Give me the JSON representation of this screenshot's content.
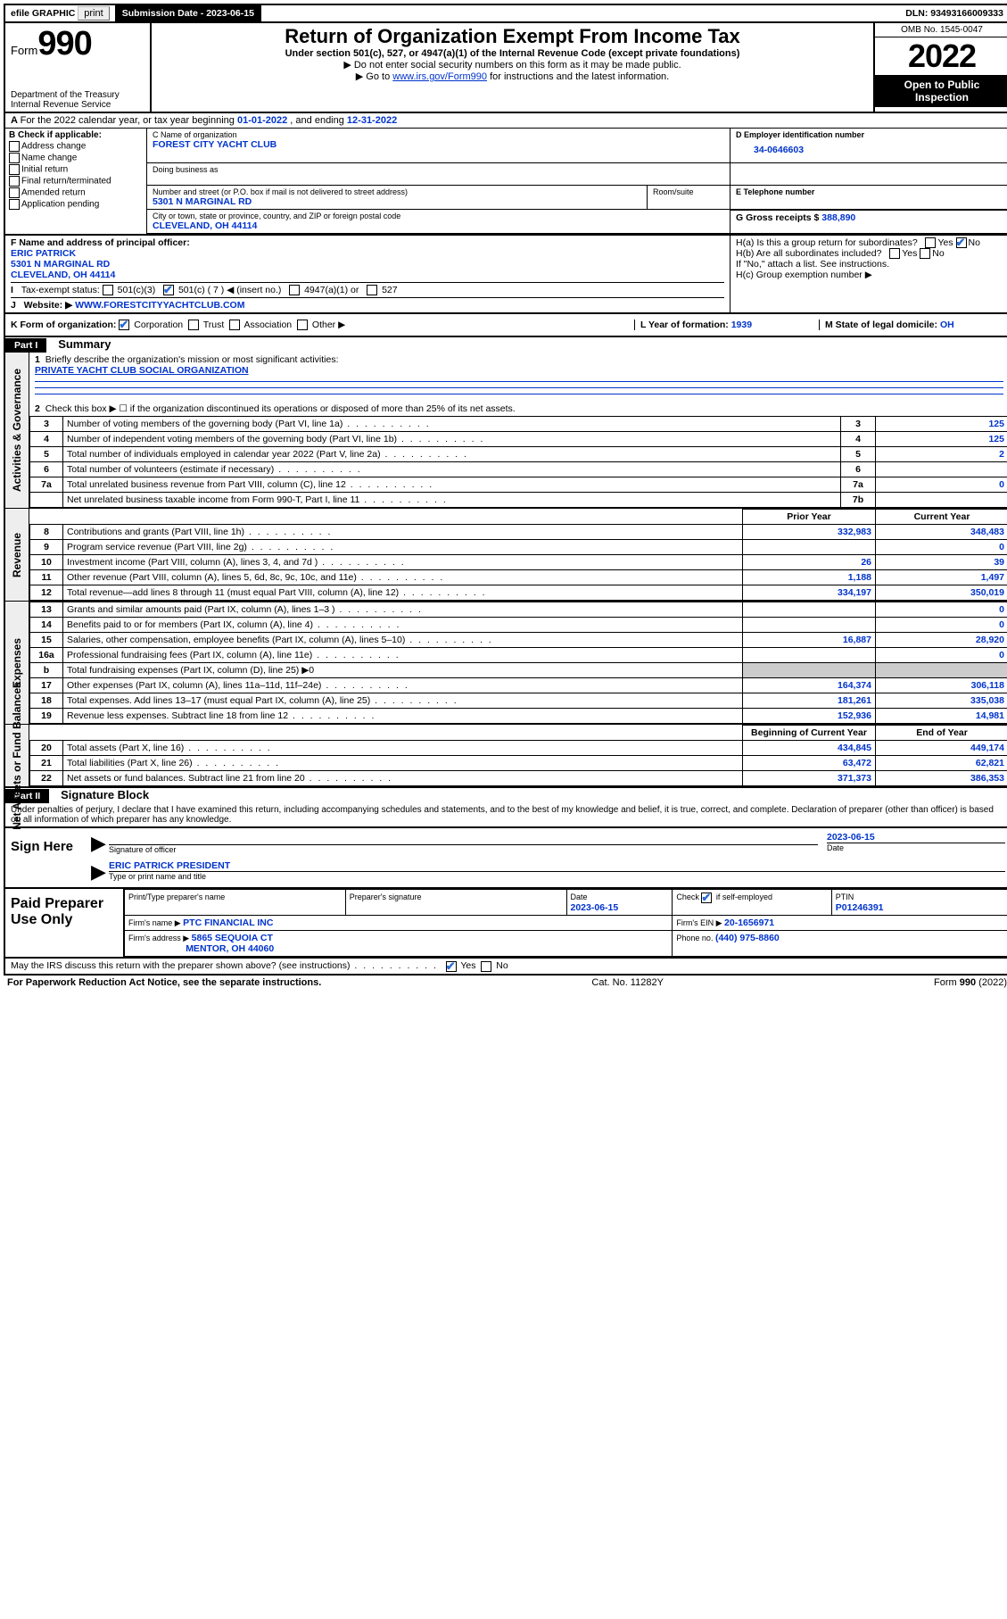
{
  "top": {
    "efile": "efile GRAPHIC",
    "print": "print",
    "sub_label": "Submission Date - ",
    "sub_date": "2023-06-15",
    "dln_label": "DLN: ",
    "dln": "93493166009333"
  },
  "hdr": {
    "form": "Form",
    "form_no": "990",
    "dept1": "Department of the Treasury",
    "dept2": "Internal Revenue Service",
    "title": "Return of Organization Exempt From Income Tax",
    "sub1": "Under section 501(c), 527, or 4947(a)(1) of the Internal Revenue Code (except private foundations)",
    "note1": "▶ Do not enter social security numbers on this form as it may be made public.",
    "note2_a": "▶ Go to ",
    "note2_link": "www.irs.gov/Form990",
    "note2_b": " for instructions and the latest information.",
    "omb": "OMB No. 1545-0047",
    "year": "2022",
    "open": "Open to Public Inspection"
  },
  "A": {
    "text_a": "For the 2022 calendar year, or tax year beginning ",
    "begin": "01-01-2022",
    "text_b": " , and ending ",
    "end": "12-31-2022"
  },
  "B": {
    "label": "B Check if applicable:",
    "opts": [
      "Address change",
      "Name change",
      "Initial return",
      "Final return/terminated",
      "Amended return",
      "Application pending"
    ]
  },
  "C": {
    "name_label": "C Name of organization",
    "name": "FOREST CITY YACHT CLUB",
    "dba_label": "Doing business as",
    "addr_label": "Number and street (or P.O. box if mail is not delivered to street address)",
    "room_label": "Room/suite",
    "addr": "5301 N MARGINAL RD",
    "city_label": "City or town, state or province, country, and ZIP or foreign postal code",
    "city": "CLEVELAND, OH  44114"
  },
  "D": {
    "label": "D Employer identification number",
    "val": "34-0646603"
  },
  "E": {
    "label": "E Telephone number",
    "val": ""
  },
  "G": {
    "label": "G Gross receipts $ ",
    "val": "388,890"
  },
  "F": {
    "label": "F Name and address of principal officer:",
    "name": "ERIC PATRICK",
    "addr1": "5301 N MARGINAL RD",
    "addr2": "CLEVELAND, OH  44114"
  },
  "H": {
    "a": "H(a)  Is this a group return for subordinates?",
    "b": "H(b)  Are all subordinates included?",
    "b_note": "If \"No,\" attach a list. See instructions.",
    "c": "H(c)  Group exemption number ▶",
    "yes": "Yes",
    "no": "No"
  },
  "I": {
    "label": "Tax-exempt status:",
    "o1": "501(c)(3)",
    "o2": "501(c) ( 7 ) ◀ (insert no.)",
    "o3": "4947(a)(1) or",
    "o4": "527"
  },
  "J": {
    "label": "Website: ▶ ",
    "val": "WWW.FORESTCITYYACHTCLUB.COM"
  },
  "K": {
    "label": "K Form of organization:",
    "o1": "Corporation",
    "o2": "Trust",
    "o3": "Association",
    "o4": "Other ▶"
  },
  "L": {
    "label": "L Year of formation: ",
    "val": "1939"
  },
  "M": {
    "label": "M State of legal domicile: ",
    "val": "OH"
  },
  "partI": {
    "hdr": "Part I",
    "title": "Summary"
  },
  "sideLabels": {
    "ag": "Activities & Governance",
    "rev": "Revenue",
    "exp": "Expenses",
    "na": "Net Assets or Fund Balances"
  },
  "p1": {
    "l1_label": "Briefly describe the organization's mission or most significant activities:",
    "l1_val": "PRIVATE YACHT CLUB SOCIAL ORGANIZATION",
    "l2": "Check this box ▶ ☐  if the organization discontinued its operations or disposed of more than 25% of its net assets.",
    "lines": [
      {
        "n": "3",
        "d": "Number of voting members of the governing body (Part VI, line 1a)",
        "b": "3",
        "v": "125"
      },
      {
        "n": "4",
        "d": "Number of independent voting members of the governing body (Part VI, line 1b)",
        "b": "4",
        "v": "125"
      },
      {
        "n": "5",
        "d": "Total number of individuals employed in calendar year 2022 (Part V, line 2a)",
        "b": "5",
        "v": "2"
      },
      {
        "n": "6",
        "d": "Total number of volunteers (estimate if necessary)",
        "b": "6",
        "v": ""
      },
      {
        "n": "7a",
        "d": "Total unrelated business revenue from Part VIII, column (C), line 12",
        "b": "7a",
        "v": "0"
      },
      {
        "n": "",
        "d": "Net unrelated business taxable income from Form 990-T, Part I, line 11",
        "b": "7b",
        "v": ""
      }
    ],
    "col_prior": "Prior Year",
    "col_curr": "Current Year",
    "rev": [
      {
        "n": "8",
        "d": "Contributions and grants (Part VIII, line 1h)",
        "p": "332,983",
        "c": "348,483"
      },
      {
        "n": "9",
        "d": "Program service revenue (Part VIII, line 2g)",
        "p": "",
        "c": "0"
      },
      {
        "n": "10",
        "d": "Investment income (Part VIII, column (A), lines 3, 4, and 7d )",
        "p": "26",
        "c": "39"
      },
      {
        "n": "11",
        "d": "Other revenue (Part VIII, column (A), lines 5, 6d, 8c, 9c, 10c, and 11e)",
        "p": "1,188",
        "c": "1,497"
      },
      {
        "n": "12",
        "d": "Total revenue—add lines 8 through 11 (must equal Part VIII, column (A), line 12)",
        "p": "334,197",
        "c": "350,019"
      }
    ],
    "exp": [
      {
        "n": "13",
        "d": "Grants and similar amounts paid (Part IX, column (A), lines 1–3 )",
        "p": "",
        "c": "0"
      },
      {
        "n": "14",
        "d": "Benefits paid to or for members (Part IX, column (A), line 4)",
        "p": "",
        "c": "0"
      },
      {
        "n": "15",
        "d": "Salaries, other compensation, employee benefits (Part IX, column (A), lines 5–10)",
        "p": "16,887",
        "c": "28,920"
      },
      {
        "n": "16a",
        "d": "Professional fundraising fees (Part IX, column (A), line 11e)",
        "p": "",
        "c": "0"
      },
      {
        "n": "b",
        "d": "Total fundraising expenses (Part IX, column (D), line 25) ▶0",
        "p": null,
        "c": null
      },
      {
        "n": "17",
        "d": "Other expenses (Part IX, column (A), lines 11a–11d, 11f–24e)",
        "p": "164,374",
        "c": "306,118"
      },
      {
        "n": "18",
        "d": "Total expenses. Add lines 13–17 (must equal Part IX, column (A), line 25)",
        "p": "181,261",
        "c": "335,038"
      },
      {
        "n": "19",
        "d": "Revenue less expenses. Subtract line 18 from line 12",
        "p": "152,936",
        "c": "14,981"
      }
    ],
    "col_begin": "Beginning of Current Year",
    "col_end": "End of Year",
    "na": [
      {
        "n": "20",
        "d": "Total assets (Part X, line 16)",
        "p": "434,845",
        "c": "449,174"
      },
      {
        "n": "21",
        "d": "Total liabilities (Part X, line 26)",
        "p": "63,472",
        "c": "62,821"
      },
      {
        "n": "22",
        "d": "Net assets or fund balances. Subtract line 21 from line 20",
        "p": "371,373",
        "c": "386,353"
      }
    ]
  },
  "partII": {
    "hdr": "Part II",
    "title": "Signature Block"
  },
  "sig": {
    "perjury": "Under penalties of perjury, I declare that I have examined this return, including accompanying schedules and statements, and to the best of my knowledge and belief, it is true, correct, and complete. Declaration of preparer (other than officer) is based on all information of which preparer has any knowledge.",
    "sign_here": "Sign Here",
    "sig_officer": "Signature of officer",
    "date_label": "Date",
    "sig_date": "2023-06-15",
    "officer_name": "ERIC PATRICK  PRESIDENT",
    "type_name": "Type or print name and title",
    "paid": "Paid Preparer Use Only",
    "prep_name_lbl": "Print/Type preparer's name",
    "prep_sig_lbl": "Preparer's signature",
    "prep_date_lbl": "Date",
    "prep_date": "2023-06-15",
    "check_if": "Check ☑ if self-employed",
    "ptin_lbl": "PTIN",
    "ptin": "P01246391",
    "firm_name_lbl": "Firm's name     ▶ ",
    "firm_name": "PTC FINANCIAL INC",
    "firm_ein_lbl": "Firm's EIN ▶ ",
    "firm_ein": "20-1656971",
    "firm_addr_lbl": "Firm's address ▶ ",
    "firm_addr1": "5865 SEQUOIA CT",
    "firm_addr2": "MENTOR, OH  44060",
    "phone_lbl": "Phone no. ",
    "phone": "(440) 975-8860",
    "discuss": "May the IRS discuss this return with the preparer shown above? (see instructions)"
  },
  "footer": {
    "pra": "For Paperwork Reduction Act Notice, see the separate instructions.",
    "cat": "Cat. No. 11282Y",
    "form": "Form 990 (2022)"
  }
}
